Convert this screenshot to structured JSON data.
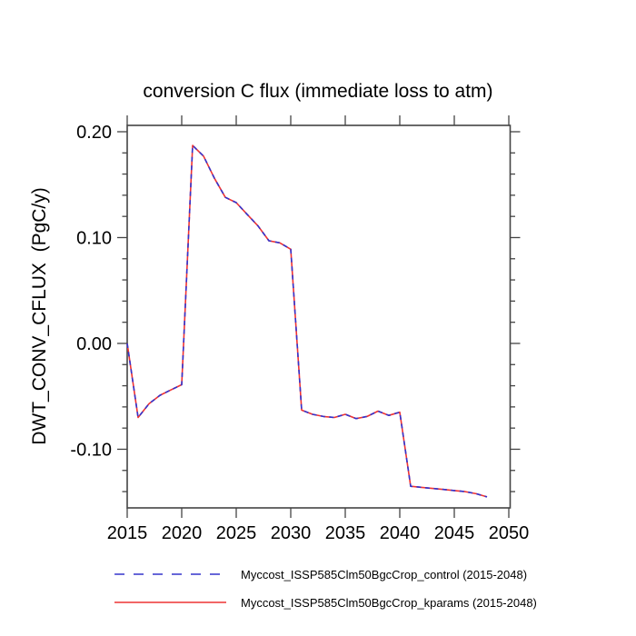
{
  "chart_data": {
    "type": "line",
    "title": "conversion C flux (immediate loss to atm)",
    "ylabel": "DWT_CONV_CFLUX  (PgC/y)",
    "xlabel": "",
    "xlim": [
      2015,
      2050.125
    ],
    "ylim": [
      -0.1554,
      0.206
    ],
    "x_tick_values": [
      2015,
      2020,
      2025,
      2030,
      2035,
      2040,
      2045,
      2050
    ],
    "x_tick_labels": [
      "2015",
      "2020",
      "2025",
      "2030",
      "2035",
      "2040",
      "2045",
      "2050"
    ],
    "y_tick_values": [
      0.2,
      0.1,
      0.0,
      -0.1
    ],
    "y_tick_labels": [
      "0.20",
      "0.10",
      "0.00",
      "-0.10"
    ],
    "y_minor_tick_step": 0.02,
    "grid": false,
    "legend_position": "bottom",
    "axis_color": "#444444",
    "x": [
      2015,
      2016,
      2017,
      2018,
      2019,
      2020,
      2021,
      2022,
      2023,
      2024,
      2025,
      2026,
      2027,
      2028,
      2029,
      2030,
      2031,
      2032,
      2033,
      2034,
      2035,
      2036,
      2037,
      2038,
      2039,
      2040,
      2041,
      2042,
      2043,
      2044,
      2045,
      2046,
      2047,
      2048
    ],
    "series": [
      {
        "name": "Myccost_ISSP585Clm50BgcCrop_control (2015-2048)",
        "color": "#3333cc",
        "style": "dashed",
        "values": [
          0.0,
          -0.07,
          -0.057,
          -0.049,
          -0.044,
          -0.039,
          0.187,
          0.177,
          0.156,
          0.138,
          0.133,
          0.122,
          0.111,
          0.097,
          0.095,
          0.089,
          -0.063,
          -0.067,
          -0.069,
          -0.07,
          -0.067,
          -0.071,
          -0.069,
          -0.064,
          -0.068,
          -0.065,
          -0.135,
          -0.136,
          -0.137,
          -0.138,
          -0.139,
          -0.14,
          -0.142,
          -0.145
        ]
      },
      {
        "name": "Myccost_ISSP585Clm50BgcCrop_kparams (2015-2048)",
        "color": "#ee3333",
        "style": "solid",
        "values": [
          0.0,
          -0.07,
          -0.057,
          -0.049,
          -0.044,
          -0.039,
          0.187,
          0.177,
          0.156,
          0.138,
          0.133,
          0.122,
          0.111,
          0.097,
          0.095,
          0.089,
          -0.063,
          -0.067,
          -0.069,
          -0.07,
          -0.067,
          -0.071,
          -0.069,
          -0.064,
          -0.068,
          -0.065,
          -0.135,
          -0.136,
          -0.137,
          -0.138,
          -0.139,
          -0.14,
          -0.142,
          -0.145
        ]
      }
    ]
  }
}
